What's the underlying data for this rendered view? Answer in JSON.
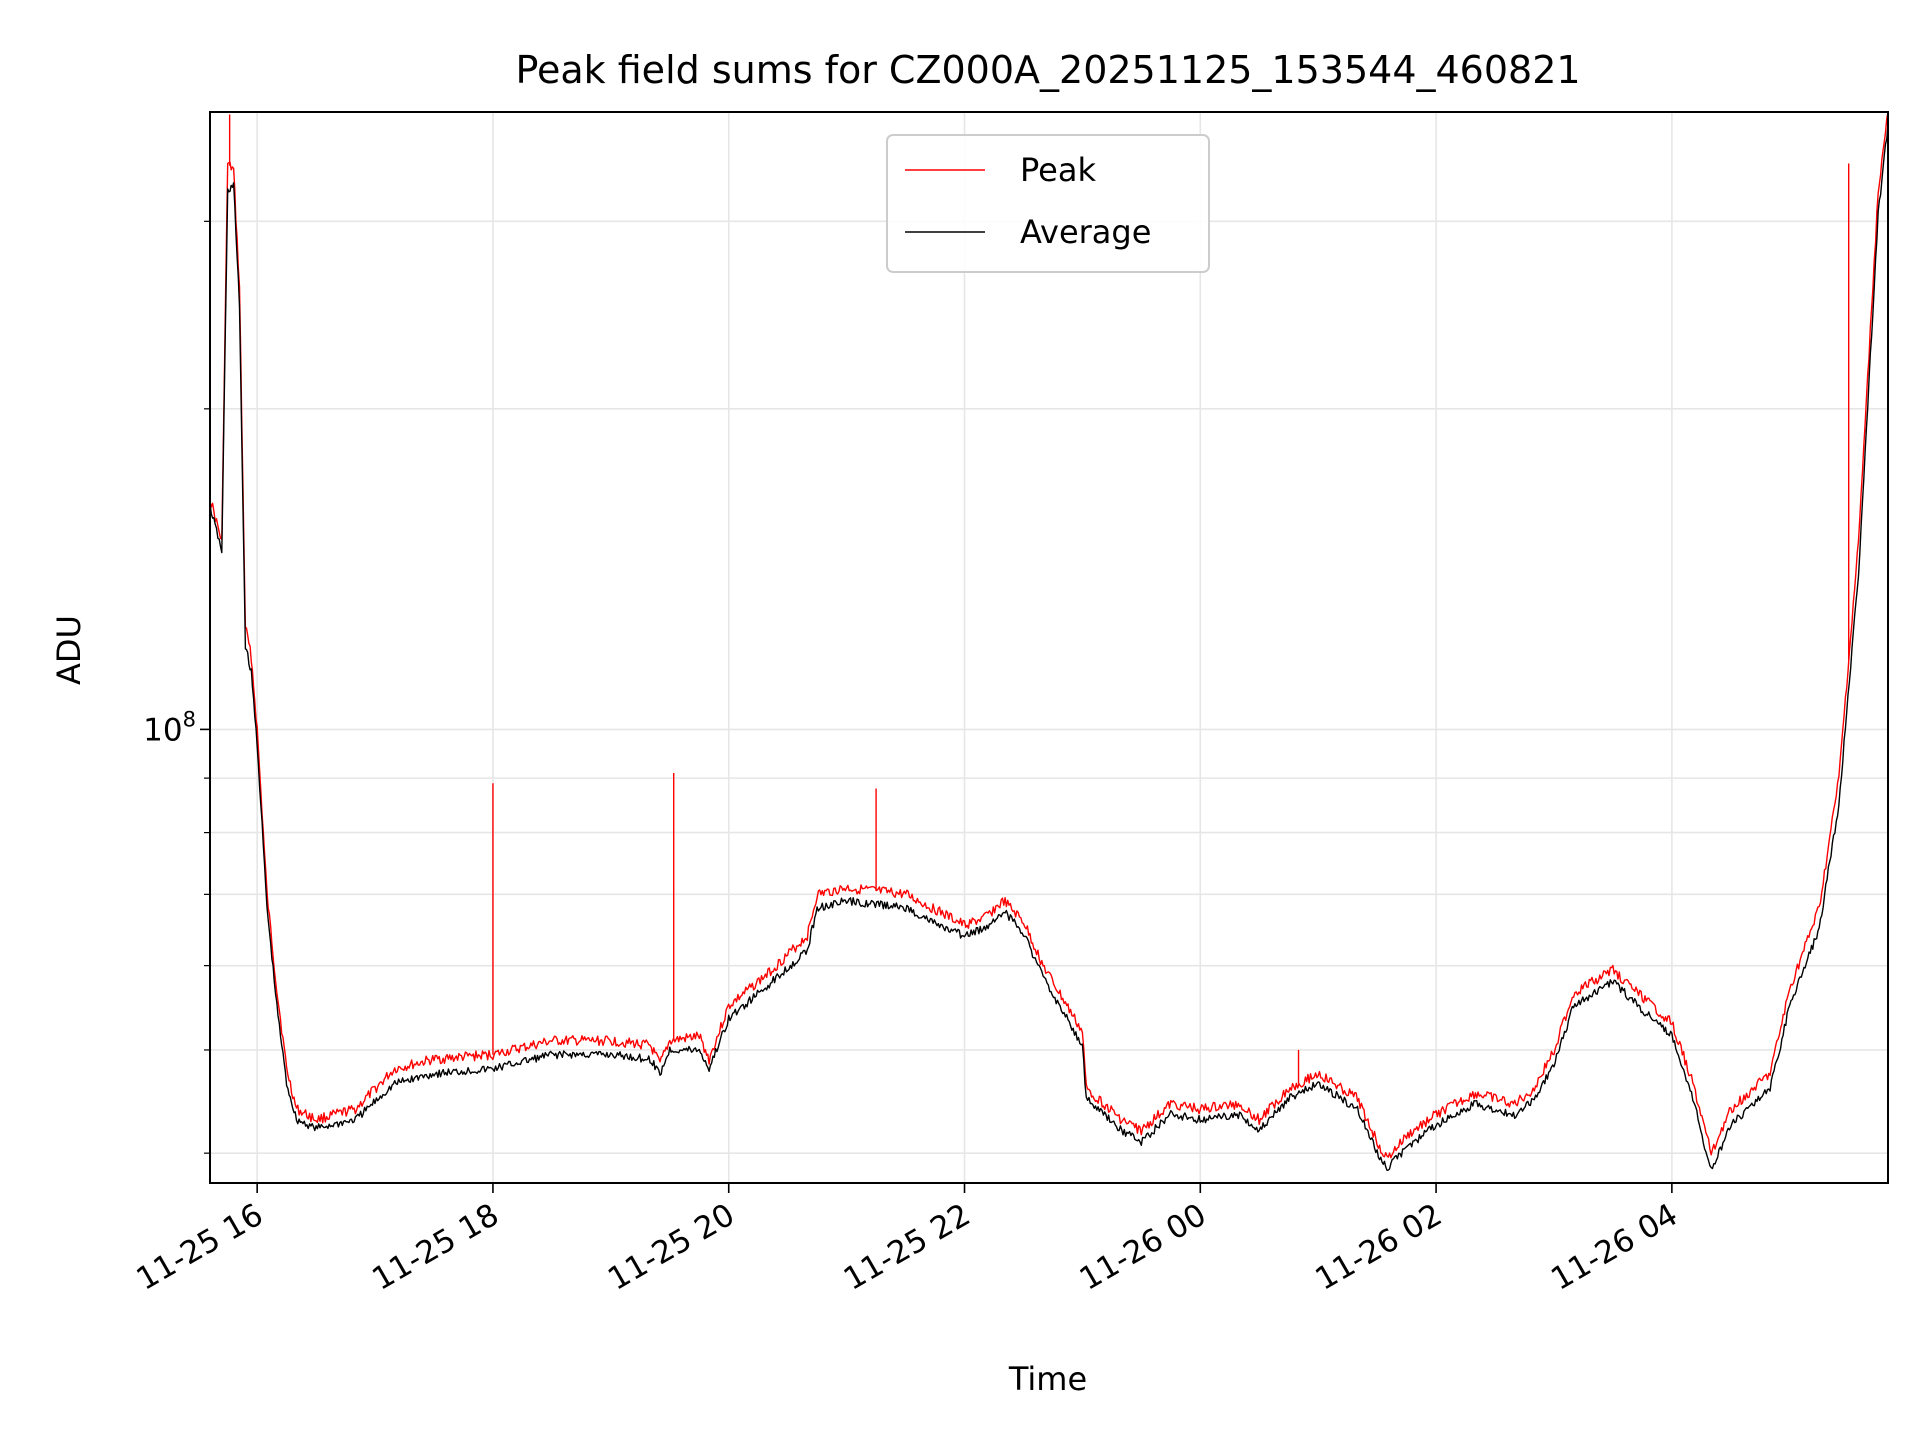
{
  "chart_data": {
    "type": "line",
    "title": "Peak field sums for CZ000A_20251125_153544_460821",
    "xlabel": "Time",
    "ylabel": "ADU",
    "x_axis": {
      "kind": "time",
      "range": [
        "2025-11-25 15:36",
        "2025-11-26 05:50"
      ],
      "ticks": [
        "2025-11-25 16:00",
        "2025-11-25 18:00",
        "2025-11-25 20:00",
        "2025-11-25 22:00",
        "2025-11-26 00:00",
        "2025-11-26 02:00",
        "2025-11-26 04:00"
      ],
      "tick_labels": [
        "11-25 16",
        "11-25 18",
        "11-25 20",
        "11-25 22",
        "11-26 00",
        "11-26 02",
        "11-26 04"
      ]
    },
    "y_axis": {
      "scale": "log",
      "range": [
        37500000,
        380000000
      ],
      "major_ticks": [
        100000000
      ],
      "major_tick_labels": [
        "10^8"
      ],
      "minor_ticks": [
        40000000,
        50000000,
        60000000,
        70000000,
        80000000,
        90000000,
        200000000,
        300000000
      ]
    },
    "grid": true,
    "legend": {
      "position": "top-center"
    },
    "series": [
      {
        "name": "Peak",
        "color": "#ff0000",
        "points": [
          [
            "2025-11-25 15:36",
            165000000
          ],
          [
            "2025-11-25 15:42",
            150000000
          ],
          [
            "2025-11-25 15:45",
            340000000
          ],
          [
            "2025-11-25 15:48",
            335000000
          ],
          [
            "2025-11-25 15:51",
            260000000
          ],
          [
            "2025-11-25 15:54",
            125000000
          ],
          [
            "2025-11-25 15:57",
            117000000
          ],
          [
            "2025-11-25 16:00",
            100000000
          ],
          [
            "2025-11-25 16:05",
            70000000
          ],
          [
            "2025-11-25 16:10",
            57000000
          ],
          [
            "2025-11-25 16:15",
            48000000
          ],
          [
            "2025-11-25 16:20",
            44000000
          ],
          [
            "2025-11-25 16:30",
            43000000
          ],
          [
            "2025-11-25 16:50",
            44000000
          ],
          [
            "2025-11-25 17:10",
            48000000
          ],
          [
            "2025-11-25 17:30",
            49000000
          ],
          [
            "2025-11-25 18:00",
            49500000
          ],
          [
            "2025-11-25 18:30",
            51000000
          ],
          [
            "2025-11-25 19:00",
            51000000
          ],
          [
            "2025-11-25 19:20",
            50500000
          ],
          [
            "2025-11-25 19:25",
            48500000
          ],
          [
            "2025-11-25 19:30",
            51000000
          ],
          [
            "2025-11-25 19:45",
            51500000
          ],
          [
            "2025-11-25 19:50",
            49000000
          ],
          [
            "2025-11-25 20:00",
            55000000
          ],
          [
            "2025-11-25 20:20",
            59000000
          ],
          [
            "2025-11-25 20:40",
            64000000
          ],
          [
            "2025-11-25 20:45",
            70000000
          ],
          [
            "2025-11-25 21:00",
            71000000
          ],
          [
            "2025-11-25 21:30",
            70000000
          ],
          [
            "2025-11-25 21:50",
            67000000
          ],
          [
            "2025-11-25 22:00",
            65500000
          ],
          [
            "2025-11-25 22:10",
            66500000
          ],
          [
            "2025-11-25 22:20",
            69000000
          ],
          [
            "2025-11-25 22:30",
            66000000
          ],
          [
            "2025-11-25 22:40",
            60000000
          ],
          [
            "2025-11-25 23:00",
            52000000
          ],
          [
            "2025-11-25 23:02",
            46000000
          ],
          [
            "2025-11-25 23:20",
            43000000
          ],
          [
            "2025-11-25 23:30",
            42000000
          ],
          [
            "2025-11-25 23:45",
            44500000
          ],
          [
            "2025-11-26 00:00",
            44000000
          ],
          [
            "2025-11-26 00:20",
            44500000
          ],
          [
            "2025-11-26 00:30",
            43000000
          ],
          [
            "2025-11-26 00:45",
            46000000
          ],
          [
            "2025-11-26 01:00",
            47500000
          ],
          [
            "2025-11-26 01:20",
            45000000
          ],
          [
            "2025-11-26 01:30",
            41000000
          ],
          [
            "2025-11-26 01:35",
            39500000
          ],
          [
            "2025-11-26 01:45",
            41500000
          ],
          [
            "2025-11-26 02:00",
            43500000
          ],
          [
            "2025-11-26 02:20",
            45500000
          ],
          [
            "2025-11-26 02:40",
            44500000
          ],
          [
            "2025-11-26 02:50",
            46000000
          ],
          [
            "2025-11-26 03:00",
            50000000
          ],
          [
            "2025-11-26 03:10",
            56500000
          ],
          [
            "2025-11-26 03:30",
            59500000
          ],
          [
            "2025-11-26 03:45",
            56000000
          ],
          [
            "2025-11-26 04:00",
            53000000
          ],
          [
            "2025-11-26 04:10",
            47000000
          ],
          [
            "2025-11-26 04:20",
            40000000
          ],
          [
            "2025-11-26 04:30",
            44000000
          ],
          [
            "2025-11-26 04:50",
            47500000
          ],
          [
            "2025-11-26 05:00",
            57000000
          ],
          [
            "2025-11-26 05:15",
            68000000
          ],
          [
            "2025-11-26 05:25",
            90000000
          ],
          [
            "2025-11-26 05:35",
            150000000
          ],
          [
            "2025-11-26 05:45",
            320000000
          ],
          [
            "2025-11-26 05:50",
            380000000
          ]
        ]
      },
      {
        "name": "Average",
        "color": "#000000",
        "points": [
          [
            "2025-11-25 15:36",
            162000000
          ],
          [
            "2025-11-25 15:42",
            147000000
          ],
          [
            "2025-11-25 15:45",
            320000000
          ],
          [
            "2025-11-25 15:48",
            325000000
          ],
          [
            "2025-11-25 15:51",
            250000000
          ],
          [
            "2025-11-25 15:54",
            120000000
          ],
          [
            "2025-11-25 15:57",
            113000000
          ],
          [
            "2025-11-25 16:00",
            97000000
          ],
          [
            "2025-11-25 16:05",
            68000000
          ],
          [
            "2025-11-25 16:10",
            55000000
          ],
          [
            "2025-11-25 16:15",
            46500000
          ],
          [
            "2025-11-25 16:20",
            43000000
          ],
          [
            "2025-11-25 16:30",
            42200000
          ],
          [
            "2025-11-25 16:50",
            43000000
          ],
          [
            "2025-11-25 17:10",
            46500000
          ],
          [
            "2025-11-25 17:30",
            47500000
          ],
          [
            "2025-11-25 18:00",
            48000000
          ],
          [
            "2025-11-25 18:30",
            49500000
          ],
          [
            "2025-11-25 19:00",
            49500000
          ],
          [
            "2025-11-25 19:20",
            49000000
          ],
          [
            "2025-11-25 19:25",
            47500000
          ],
          [
            "2025-11-25 19:30",
            50000000
          ],
          [
            "2025-11-25 19:45",
            50000000
          ],
          [
            "2025-11-25 19:50",
            48000000
          ],
          [
            "2025-11-25 20:00",
            53500000
          ],
          [
            "2025-11-25 20:20",
            57500000
          ],
          [
            "2025-11-25 20:40",
            62000000
          ],
          [
            "2025-11-25 20:45",
            68000000
          ],
          [
            "2025-11-25 21:00",
            69000000
          ],
          [
            "2025-11-25 21:30",
            68000000
          ],
          [
            "2025-11-25 21:50",
            65000000
          ],
          [
            "2025-11-25 22:00",
            64000000
          ],
          [
            "2025-11-25 22:10",
            65000000
          ],
          [
            "2025-11-25 22:20",
            67500000
          ],
          [
            "2025-11-25 22:30",
            64500000
          ],
          [
            "2025-11-25 22:40",
            58500000
          ],
          [
            "2025-11-25 23:00",
            50500000
          ],
          [
            "2025-11-25 23:02",
            45000000
          ],
          [
            "2025-11-25 23:20",
            42000000
          ],
          [
            "2025-11-25 23:30",
            41000000
          ],
          [
            "2025-11-25 23:45",
            43500000
          ],
          [
            "2025-11-26 00:00",
            43000000
          ],
          [
            "2025-11-26 00:20",
            43500000
          ],
          [
            "2025-11-26 00:30",
            42000000
          ],
          [
            "2025-11-26 00:45",
            45000000
          ],
          [
            "2025-11-26 01:00",
            46500000
          ],
          [
            "2025-11-26 01:20",
            44000000
          ],
          [
            "2025-11-26 01:30",
            40000000
          ],
          [
            "2025-11-26 01:35",
            38700000
          ],
          [
            "2025-11-26 01:45",
            40500000
          ],
          [
            "2025-11-26 02:00",
            42500000
          ],
          [
            "2025-11-26 02:20",
            44500000
          ],
          [
            "2025-11-26 02:40",
            43500000
          ],
          [
            "2025-11-26 02:50",
            45000000
          ],
          [
            "2025-11-26 03:00",
            48500000
          ],
          [
            "2025-11-26 03:10",
            55000000
          ],
          [
            "2025-11-26 03:30",
            58000000
          ],
          [
            "2025-11-26 03:45",
            54500000
          ],
          [
            "2025-11-26 04:00",
            51500000
          ],
          [
            "2025-11-26 04:10",
            45500000
          ],
          [
            "2025-11-26 04:20",
            38500000
          ],
          [
            "2025-11-26 04:30",
            42500000
          ],
          [
            "2025-11-26 04:50",
            46000000
          ],
          [
            "2025-11-26 05:00",
            55000000
          ],
          [
            "2025-11-26 05:15",
            65000000
          ],
          [
            "2025-11-26 05:25",
            85000000
          ],
          [
            "2025-11-26 05:35",
            140000000
          ],
          [
            "2025-11-26 05:45",
            305000000
          ],
          [
            "2025-11-26 05:50",
            370000000
          ]
        ]
      }
    ],
    "spikes": [
      {
        "series": "Peak",
        "x": "2025-11-25 15:46",
        "y": 378000000
      },
      {
        "series": "Peak",
        "x": "2025-11-25 18:00",
        "y": 89000000
      },
      {
        "series": "Peak",
        "x": "2025-11-25 19:32",
        "y": 91000000
      },
      {
        "series": "Peak",
        "x": "2025-11-25 21:15",
        "y": 88000000
      },
      {
        "series": "Peak",
        "x": "2025-11-26 00:50",
        "y": 50000000
      },
      {
        "series": "Peak",
        "x": "2025-11-26 05:30",
        "y": 340000000
      }
    ]
  }
}
